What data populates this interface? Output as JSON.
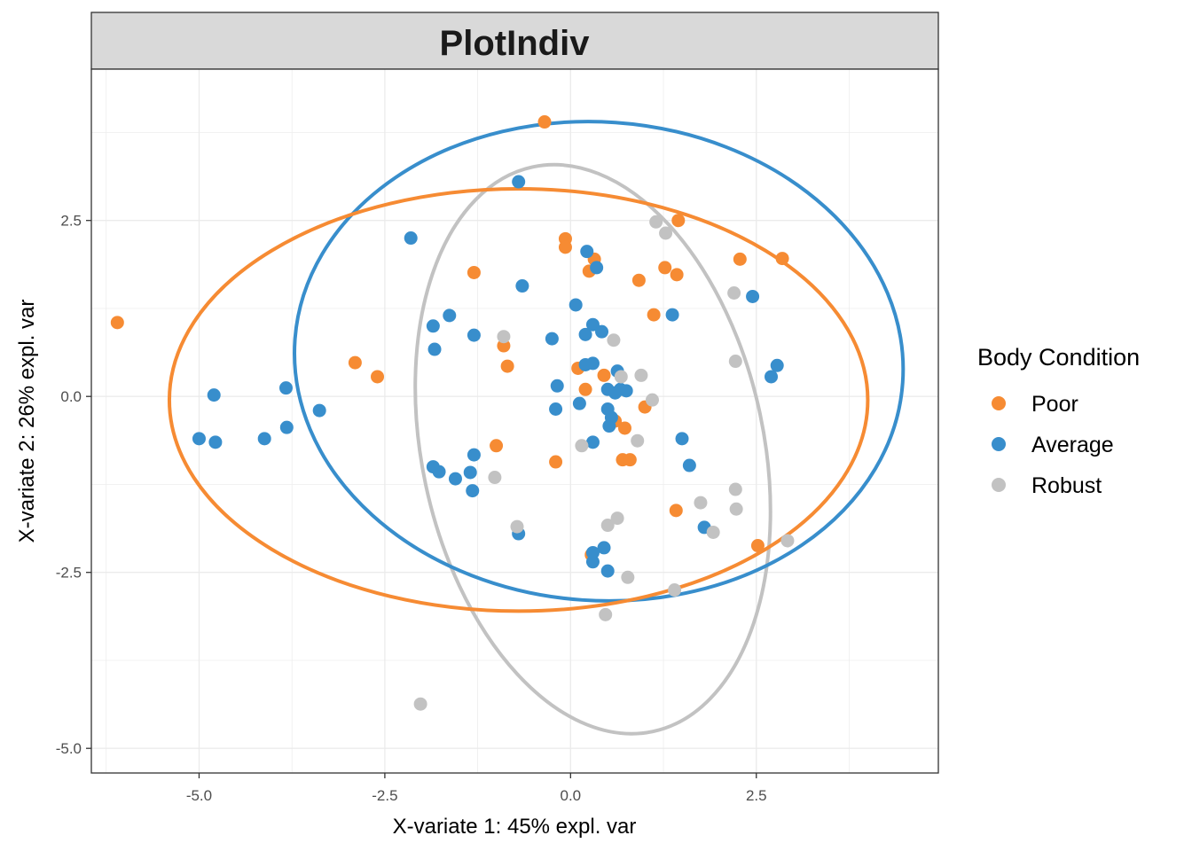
{
  "chart_data": {
    "type": "scatter",
    "title": "PlotIndiv",
    "xlabel": "X-variate 1: 45% expl. var",
    "ylabel": "X-variate 2: 26% expl. var",
    "xlim": [
      -6.45,
      4.95
    ],
    "ylim": [
      -5.35,
      4.65
    ],
    "x_ticks": [
      -5.0,
      -2.5,
      0.0,
      2.5
    ],
    "x_tick_labels": [
      "-5.0",
      "-2.5",
      "0.0",
      "2.5"
    ],
    "y_ticks": [
      -5.0,
      -2.5,
      0.0,
      2.5
    ],
    "y_tick_labels": [
      "-5.0",
      "-2.5",
      "0.0",
      "2.5"
    ],
    "grid": true,
    "legend": {
      "title": "Body Condition",
      "position": "right"
    },
    "series": [
      {
        "name": "Poor",
        "color": "#F68B33",
        "points": [
          [
            -6.1,
            1.05
          ],
          [
            -2.9,
            0.48
          ],
          [
            -2.6,
            0.28
          ],
          [
            -1.3,
            1.76
          ],
          [
            -0.9,
            0.72
          ],
          [
            -0.85,
            0.43
          ],
          [
            -1.0,
            -0.7
          ],
          [
            -0.35,
            3.9
          ],
          [
            -0.07,
            2.24
          ],
          [
            -0.07,
            2.12
          ],
          [
            0.25,
            1.78
          ],
          [
            0.32,
            1.95
          ],
          [
            0.1,
            0.4
          ],
          [
            0.2,
            0.1
          ],
          [
            -0.2,
            -0.93
          ],
          [
            0.45,
            0.3
          ],
          [
            0.6,
            -0.35
          ],
          [
            0.7,
            -0.9
          ],
          [
            0.8,
            -0.9
          ],
          [
            0.73,
            -0.45
          ],
          [
            0.92,
            1.65
          ],
          [
            1.0,
            -0.15
          ],
          [
            1.12,
            1.16
          ],
          [
            1.27,
            1.83
          ],
          [
            1.43,
            1.73
          ],
          [
            1.45,
            2.5
          ],
          [
            1.42,
            -1.62
          ],
          [
            2.28,
            1.95
          ],
          [
            2.85,
            1.96
          ],
          [
            2.52,
            -2.12
          ],
          [
            0.28,
            -2.25
          ]
        ]
      },
      {
        "name": "Average",
        "color": "#388ECC",
        "points": [
          [
            -5.0,
            -0.6
          ],
          [
            -4.8,
            0.02
          ],
          [
            -4.78,
            -0.65
          ],
          [
            -4.12,
            -0.6
          ],
          [
            -3.83,
            0.12
          ],
          [
            -3.82,
            -0.44
          ],
          [
            -3.38,
            -0.2
          ],
          [
            -2.15,
            2.25
          ],
          [
            -1.85,
            1.0
          ],
          [
            -1.83,
            0.67
          ],
          [
            -1.63,
            1.15
          ],
          [
            -1.85,
            -1.0
          ],
          [
            -1.77,
            -1.07
          ],
          [
            -1.55,
            -1.17
          ],
          [
            -1.35,
            -1.08
          ],
          [
            -1.3,
            0.87
          ],
          [
            -1.3,
            -0.83
          ],
          [
            -1.32,
            -1.34
          ],
          [
            -0.7,
            3.05
          ],
          [
            -0.65,
            1.57
          ],
          [
            -0.7,
            -1.95
          ],
          [
            -0.25,
            0.82
          ],
          [
            -0.2,
            -0.18
          ],
          [
            -0.18,
            0.15
          ],
          [
            0.07,
            1.3
          ],
          [
            0.12,
            -0.1
          ],
          [
            0.2,
            0.88
          ],
          [
            0.2,
            0.45
          ],
          [
            0.22,
            2.06
          ],
          [
            0.3,
            0.47
          ],
          [
            0.3,
            1.02
          ],
          [
            0.35,
            1.83
          ],
          [
            0.42,
            0.92
          ],
          [
            0.55,
            -0.3
          ],
          [
            0.52,
            -0.42
          ],
          [
            0.5,
            0.1
          ],
          [
            0.6,
            0.05
          ],
          [
            0.63,
            0.36
          ],
          [
            0.67,
            0.1
          ],
          [
            0.75,
            0.08
          ],
          [
            0.3,
            -0.65
          ],
          [
            0.5,
            -0.18
          ],
          [
            0.3,
            -2.22
          ],
          [
            0.3,
            -2.35
          ],
          [
            0.45,
            -2.15
          ],
          [
            0.5,
            -2.48
          ],
          [
            1.37,
            1.16
          ],
          [
            1.5,
            -0.6
          ],
          [
            1.6,
            -0.98
          ],
          [
            1.8,
            -1.86
          ],
          [
            2.45,
            1.42
          ],
          [
            2.7,
            0.28
          ],
          [
            2.78,
            0.44
          ]
        ]
      },
      {
        "name": "Robust",
        "color": "#C2C2C2",
        "points": [
          [
            -2.02,
            -4.37
          ],
          [
            -1.02,
            -1.15
          ],
          [
            -0.9,
            0.85
          ],
          [
            -0.72,
            -1.85
          ],
          [
            0.15,
            -0.7
          ],
          [
            0.58,
            0.8
          ],
          [
            0.68,
            0.28
          ],
          [
            0.95,
            0.3
          ],
          [
            0.9,
            -0.63
          ],
          [
            1.1,
            -0.05
          ],
          [
            0.5,
            -1.83
          ],
          [
            0.63,
            -1.73
          ],
          [
            0.47,
            -3.1
          ],
          [
            0.77,
            -2.57
          ],
          [
            1.15,
            2.48
          ],
          [
            1.28,
            2.32
          ],
          [
            1.4,
            -2.75
          ],
          [
            1.75,
            -1.51
          ],
          [
            1.92,
            -1.93
          ],
          [
            2.2,
            1.47
          ],
          [
            2.22,
            0.5
          ],
          [
            2.22,
            -1.32
          ],
          [
            2.23,
            -1.6
          ],
          [
            2.92,
            -2.05
          ]
        ]
      }
    ],
    "ellipses": [
      {
        "series": "Robust",
        "color": "#C2C2C2",
        "cx": 0.3,
        "cy": -0.75,
        "rx": 2.3,
        "ry": 4.1,
        "angle_deg": -12
      },
      {
        "series": "Average",
        "color": "#388ECC",
        "cx": 0.38,
        "cy": 0.5,
        "rx": 4.1,
        "ry": 3.4,
        "angle_deg": 4
      },
      {
        "series": "Poor",
        "color": "#F68B33",
        "cx": -0.7,
        "cy": -0.05,
        "rx": 4.7,
        "ry": 3.0,
        "angle_deg": 0
      }
    ]
  }
}
